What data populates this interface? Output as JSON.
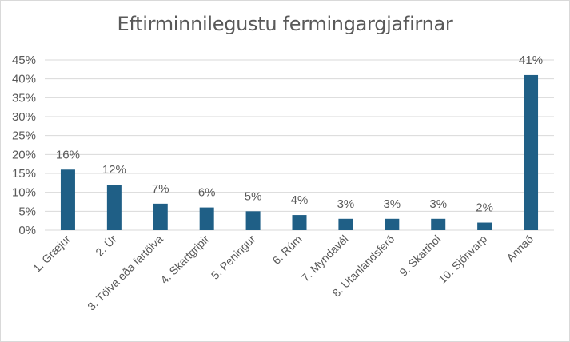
{
  "chart_data": {
    "type": "bar",
    "title": "Eftirminnilegustu fermingargjafirnar",
    "categories": [
      "1. Græjur",
      "2. Úr",
      "3. Tölva eða fartölva",
      "4. Skartgripir",
      "5. Peningur",
      "6. Rúm",
      "7. Myndavél",
      "8. Utanlandsferð",
      "9. Skatthol",
      "10. Sjónvarp",
      "Annað"
    ],
    "values": [
      16,
      12,
      7,
      6,
      5,
      4,
      3,
      3,
      3,
      2,
      41
    ],
    "data_labels": [
      "16%",
      "12%",
      "7%",
      "6%",
      "5%",
      "4%",
      "3%",
      "3%",
      "3%",
      "2%",
      "41%"
    ],
    "y_ticks": [
      "0%",
      "5%",
      "10%",
      "15%",
      "20%",
      "25%",
      "30%",
      "35%",
      "40%",
      "45%"
    ],
    "ylim": [
      0,
      45
    ],
    "xlabel": "",
    "ylabel": "",
    "grid": true,
    "legend": "none",
    "colors": {
      "bar": "#1f5f86",
      "grid": "#d9d9d9",
      "text": "#595959",
      "title": "#595959"
    }
  }
}
